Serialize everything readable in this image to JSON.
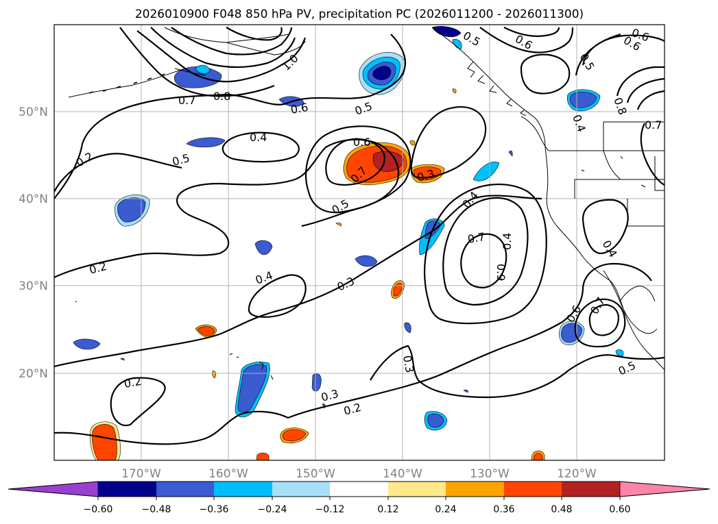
{
  "title": "2026010900 F048 850 hPa PV, precipitation PC (2026011200 - 2026011300)",
  "axes": {
    "lon_labels": [
      "170°W",
      "160°W",
      "150°W",
      "140°W",
      "130°W",
      "120°W"
    ],
    "lat_labels": [
      "50°N",
      "40°N",
      "30°N",
      "20°N"
    ],
    "lon_range": [
      -180,
      -110
    ],
    "lat_range": [
      10,
      60
    ]
  },
  "colorbar": {
    "colors": [
      "#9b3fd0",
      "#00008b",
      "#3b5bd1",
      "#00bfff",
      "#a8e0fa",
      "#ffffff",
      "#ffe98a",
      "#ffa500",
      "#ff4500",
      "#b22222",
      "#ff85a8"
    ],
    "tick_labels": [
      "−0.60",
      "−0.48",
      "−0.36",
      "−0.24",
      "−0.12",
      "0.12",
      "0.24",
      "0.36",
      "0.48",
      "0.60"
    ]
  },
  "contour_labels": [
    "0.2",
    "0.2",
    "0.2",
    "0.2",
    "0.3",
    "0.3",
    "0.3",
    "0.4",
    "0.4",
    "0.4",
    "0.4",
    "0.5",
    "0.5",
    "0.5",
    "0.5",
    "0.6",
    "0.6",
    "0.6",
    "0.7",
    "0.7",
    "0.7",
    "0.8",
    "0.9",
    "1.0",
    "0.3",
    "0.6",
    "0.4",
    "0.7",
    "0.5",
    "0.8",
    "0.7",
    "0.6",
    "0.5",
    "0.4",
    "0.6"
  ],
  "icons": {
    "map": "map-icon"
  }
}
